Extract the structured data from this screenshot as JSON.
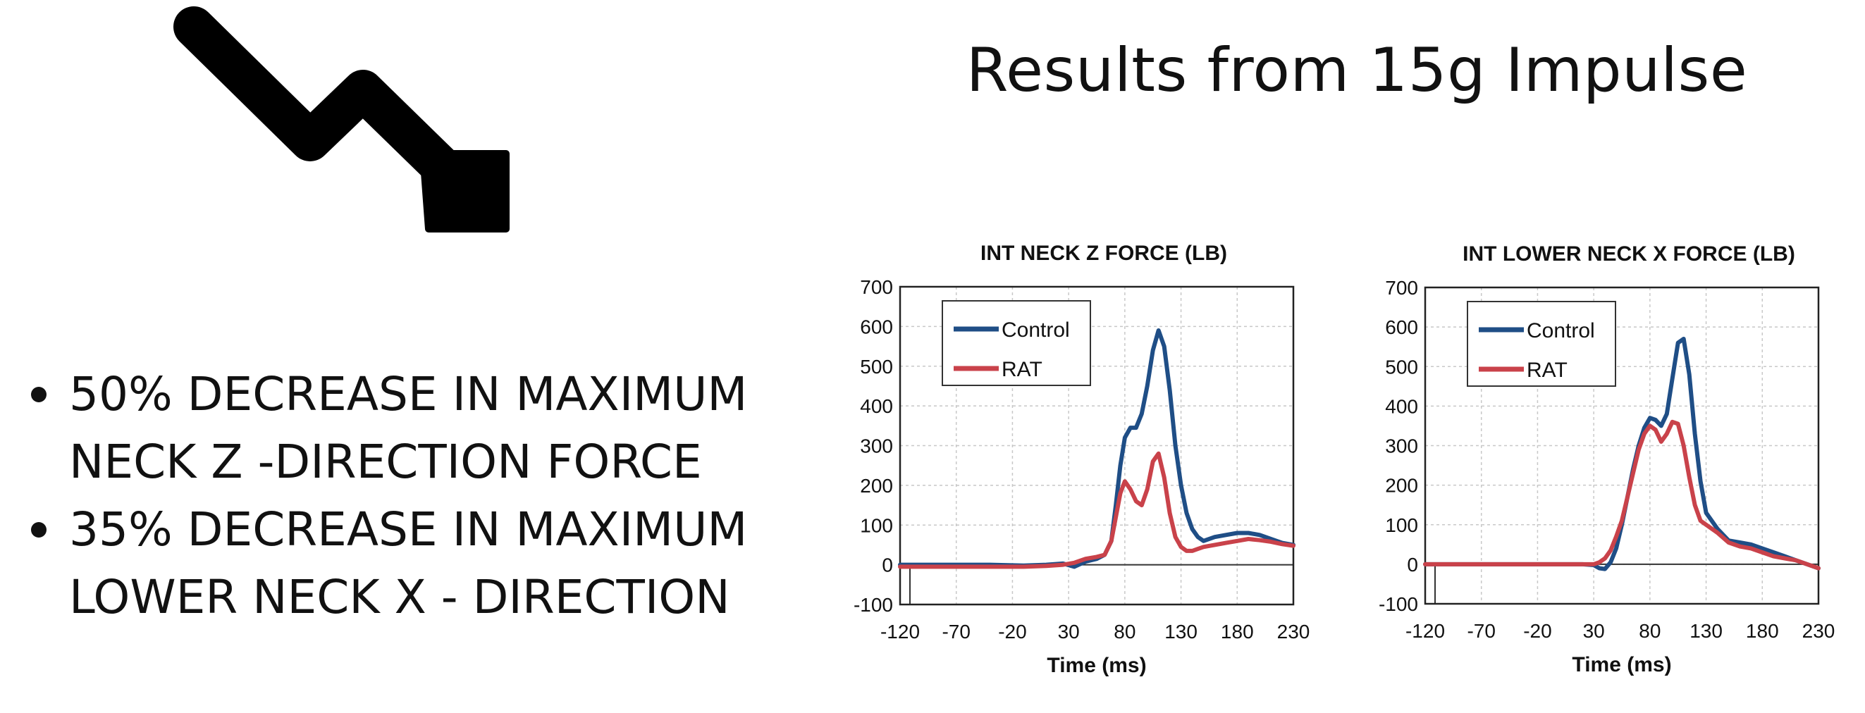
{
  "slide": {
    "title": "Results from 15g Impulse",
    "bullets": [
      "50% DECREASE IN MAXIMUM NECK Z -DIRECTION FORCE",
      "35% DECREASE IN MAXIMUM LOWER NECK X - DIRECTION"
    ],
    "arrow_icon": "trend-down-arrow-icon"
  },
  "colors": {
    "control": "#1f4e86",
    "rat": "#c9424a",
    "grid": "#c8c8c8",
    "text": "#111111"
  },
  "chart_data": [
    {
      "type": "line",
      "title": "INT NECK Z FORCE (LB)",
      "xlabel": "Time (ms)",
      "ylabel": "",
      "xlim": [
        -120,
        230
      ],
      "ylim": [
        -100,
        700
      ],
      "xticks": [
        -120,
        -70,
        -20,
        30,
        80,
        130,
        180,
        230
      ],
      "yticks": [
        -100,
        0,
        100,
        200,
        300,
        400,
        500,
        600,
        700
      ],
      "grid": true,
      "legend": "top-left",
      "series": [
        {
          "name": "Control",
          "x": [
            -120,
            -80,
            -40,
            -10,
            10,
            25,
            35,
            45,
            55,
            62,
            68,
            72,
            76,
            80,
            85,
            90,
            95,
            100,
            105,
            110,
            115,
            120,
            125,
            130,
            135,
            140,
            145,
            150,
            160,
            170,
            180,
            190,
            200,
            210,
            220,
            230
          ],
          "y": [
            0,
            0,
            0,
            -2,
            0,
            3,
            -5,
            8,
            15,
            25,
            60,
            150,
            250,
            320,
            345,
            345,
            380,
            450,
            540,
            590,
            550,
            440,
            300,
            200,
            130,
            90,
            70,
            60,
            70,
            75,
            80,
            80,
            75,
            65,
            55,
            50
          ]
        },
        {
          "name": "RAT",
          "x": [
            -120,
            -80,
            -40,
            -10,
            10,
            25,
            35,
            45,
            55,
            62,
            68,
            72,
            76,
            80,
            85,
            90,
            95,
            100,
            105,
            110,
            115,
            120,
            125,
            130,
            135,
            140,
            145,
            150,
            160,
            170,
            180,
            190,
            200,
            210,
            220,
            230
          ],
          "y": [
            -5,
            -5,
            -5,
            -5,
            -3,
            0,
            5,
            15,
            20,
            25,
            60,
            120,
            180,
            210,
            190,
            160,
            150,
            190,
            260,
            280,
            220,
            130,
            70,
            45,
            35,
            35,
            40,
            45,
            50,
            55,
            60,
            65,
            62,
            58,
            52,
            48
          ]
        }
      ]
    },
    {
      "type": "line",
      "title": "INT LOWER NECK X FORCE (LB)",
      "xlabel": "Time (ms)",
      "ylabel": "",
      "xlim": [
        -120,
        230
      ],
      "ylim": [
        -100,
        700
      ],
      "xticks": [
        -120,
        -70,
        -20,
        30,
        80,
        130,
        180,
        230
      ],
      "yticks": [
        -100,
        0,
        100,
        200,
        300,
        400,
        500,
        600,
        700
      ],
      "grid": true,
      "legend": "top-left",
      "series": [
        {
          "name": "Control",
          "x": [
            -120,
            -80,
            -40,
            0,
            20,
            30,
            35,
            40,
            45,
            50,
            55,
            60,
            65,
            70,
            75,
            80,
            85,
            90,
            95,
            100,
            105,
            110,
            115,
            120,
            125,
            130,
            140,
            150,
            160,
            170,
            180,
            190,
            200,
            210,
            220,
            230
          ],
          "y": [
            0,
            0,
            0,
            0,
            0,
            -2,
            -10,
            -12,
            5,
            40,
            100,
            170,
            240,
            300,
            345,
            370,
            365,
            350,
            380,
            470,
            560,
            570,
            480,
            330,
            210,
            130,
            90,
            60,
            55,
            50,
            40,
            30,
            20,
            10,
            0,
            -10
          ],
          "peak_note": "max approx 575"
        },
        {
          "name": "RAT",
          "x": [
            -120,
            -80,
            -40,
            0,
            20,
            30,
            35,
            40,
            45,
            50,
            55,
            60,
            65,
            70,
            75,
            80,
            85,
            90,
            95,
            100,
            105,
            110,
            115,
            120,
            125,
            130,
            140,
            150,
            160,
            170,
            180,
            190,
            200,
            210,
            220,
            230
          ],
          "y": [
            0,
            0,
            0,
            0,
            0,
            0,
            5,
            15,
            35,
            70,
            110,
            170,
            230,
            290,
            330,
            350,
            340,
            310,
            330,
            360,
            355,
            300,
            220,
            150,
            110,
            100,
            80,
            55,
            45,
            40,
            30,
            20,
            15,
            10,
            0,
            -10
          ]
        }
      ]
    }
  ]
}
